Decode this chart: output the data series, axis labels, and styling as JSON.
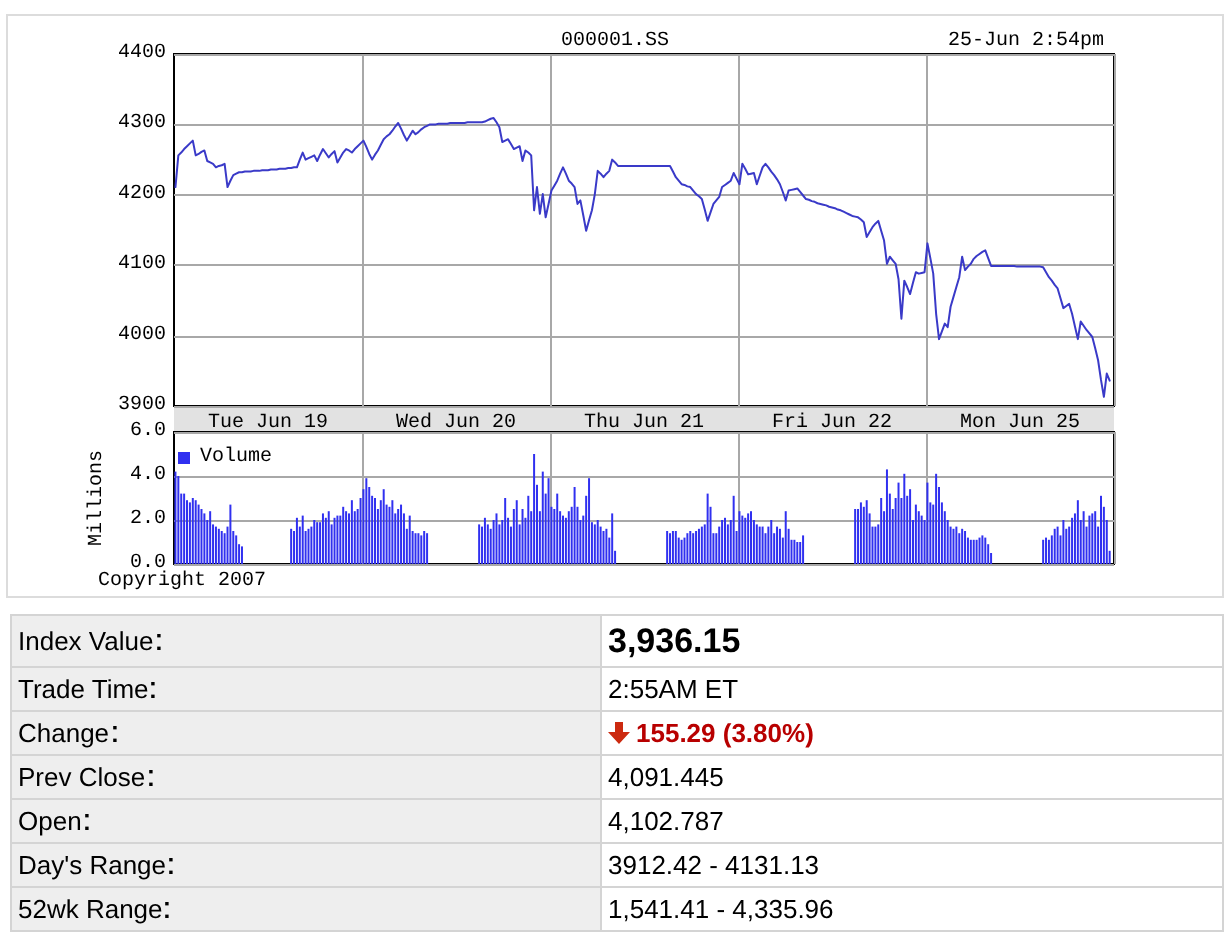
{
  "chart_data": [
    {
      "type": "line",
      "title": "000001.SS",
      "subtitle": "25-Jun 2:54pm",
      "categories": [
        null,
        null,
        null,
        null,
        null,
        null,
        null,
        null,
        null,
        null,
        null,
        null,
        null,
        null,
        null,
        null,
        null,
        null,
        null,
        null,
        null,
        null,
        null,
        null,
        null,
        null,
        null,
        null,
        null,
        null,
        null,
        null,
        "Tue Jun 19",
        null,
        null,
        null,
        null,
        null,
        null,
        null,
        null,
        null,
        null,
        null,
        null,
        null,
        null,
        null,
        null,
        null,
        null,
        null,
        null,
        null,
        null,
        null,
        null,
        null,
        null,
        null,
        null,
        null,
        null,
        null,
        null,
        null,
        null,
        null,
        null,
        null,
        null,
        null,
        null,
        null,
        null,
        null,
        null,
        null,
        null,
        null,
        null,
        null,
        null,
        null,
        null,
        null,
        null,
        null,
        null,
        null,
        null,
        null,
        null,
        null,
        null,
        null,
        null,
        "Wed Jun 20",
        null,
        null,
        null,
        null,
        null,
        null,
        null,
        null,
        null,
        null,
        null,
        null,
        null,
        null,
        null,
        null,
        null,
        null,
        null,
        null,
        null,
        null,
        null,
        null,
        null,
        null,
        null,
        null,
        null,
        null,
        null,
        null,
        null,
        null,
        null,
        null,
        null,
        null,
        null,
        null,
        null,
        null,
        null,
        null,
        null,
        null,
        null,
        null,
        null,
        null,
        null,
        null,
        null,
        null,
        null,
        null,
        null,
        null,
        null,
        null,
        null,
        null,
        null,
        null,
        "Thu Jun 21",
        null,
        null,
        null,
        null,
        null,
        null,
        null,
        null,
        null,
        null,
        null,
        null,
        null,
        null,
        null,
        null,
        null,
        null,
        null,
        null,
        null,
        null,
        null,
        null,
        null,
        null,
        null,
        null,
        null,
        null,
        null,
        null,
        null,
        null,
        null,
        null,
        null,
        null,
        null,
        null,
        null,
        null,
        null,
        null,
        null,
        null,
        null,
        null,
        null,
        null,
        null,
        null,
        null,
        null,
        null,
        null,
        null,
        null,
        null,
        null,
        null,
        null,
        null,
        null,
        "Fri Jun 22",
        null,
        null,
        null,
        null,
        null,
        null,
        null,
        null,
        null,
        null,
        null,
        null,
        null,
        null,
        null,
        null,
        null,
        null,
        null,
        null,
        null,
        null,
        null,
        null,
        null,
        null,
        null,
        null,
        null,
        null,
        null,
        null,
        null,
        null,
        null,
        null,
        null,
        null,
        null,
        null,
        null,
        null,
        null,
        null,
        null,
        null,
        null,
        null,
        null,
        null,
        null,
        null,
        null,
        null,
        null,
        null,
        null,
        null,
        null,
        null,
        null,
        null,
        null,
        null,
        "Mon Jun 25",
        null,
        null,
        null,
        null,
        null,
        null,
        null,
        null,
        null,
        null,
        null,
        null,
        null,
        null,
        null,
        null,
        null,
        null,
        null,
        null,
        null,
        null,
        null,
        null,
        null,
        null,
        null,
        null,
        null,
        null,
        null,
        null
      ],
      "values": [
        4211,
        4256,
        4260,
        4265,
        4269,
        4273,
        4277,
        4256,
        4258,
        4261,
        4263,
        4248,
        4246,
        4244,
        4239,
        4241,
        4242,
        4244,
        4211,
        4220,
        4228,
        4230,
        4232,
        4232,
        4233,
        4233,
        4233,
        4234,
        4234,
        4234,
        4235,
        4235,
        4235,
        4236,
        4236,
        4236,
        4237,
        4237,
        4237,
        4238,
        4238,
        4239,
        4239,
        4250,
        4260,
        4250,
        4252,
        4254,
        4256,
        4248,
        4257,
        4265,
        4259,
        4253,
        4258,
        4262,
        4246,
        4253,
        4260,
        4265,
        4263,
        4260,
        4265,
        4269,
        4273,
        4277,
        4268,
        4258,
        4250,
        4257,
        4263,
        4271,
        4279,
        4283,
        4286,
        4291,
        4297,
        4302,
        4294,
        4285,
        4277,
        4284,
        4291,
        4286,
        4289,
        4293,
        4296,
        4298,
        4300,
        4300,
        4300,
        4301,
        4301,
        4301,
        4301,
        4302,
        4302,
        4302,
        4302,
        4302,
        4302,
        4303,
        4303,
        4303,
        4303,
        4303,
        4303,
        4304,
        4306,
        4308,
        4309,
        4303,
        4296,
        4275,
        4277,
        4279,
        4272,
        4265,
        4267,
        4269,
        4248,
        4263,
        4260,
        4256,
        4178,
        4211,
        4173,
        4201,
        4168,
        4187,
        4206,
        4213,
        4220,
        4230,
        4239,
        4230,
        4220,
        4216,
        4211,
        4187,
        4192,
        4171,
        4149,
        4164,
        4178,
        4201,
        4234,
        4230,
        4225,
        4230,
        4234,
        4250,
        4246,
        4241,
        4241,
        4241,
        4241,
        4241,
        4241,
        4241,
        4241,
        4241,
        4241,
        4241,
        4241,
        4241,
        4241,
        4241,
        4241,
        4241,
        4241,
        4241,
        4233,
        4225,
        4220,
        4215,
        4214,
        4212,
        4211,
        4206,
        4201,
        4198,
        4194,
        4179,
        4163,
        4175,
        4187,
        4192,
        4197,
        4211,
        4214,
        4217,
        4220,
        4231,
        4223,
        4215,
        4244,
        4237,
        4229,
        4230,
        4231,
        4215,
        4227,
        4239,
        4244,
        4239,
        4233,
        4228,
        4222,
        4215,
        4204,
        4192,
        4206,
        4207,
        4208,
        4209,
        4204,
        4199,
        4194,
        4193,
        4191,
        4190,
        4188,
        4187,
        4186,
        4185,
        4183,
        4182,
        4181,
        4179,
        4178,
        4176,
        4174,
        4172,
        4170,
        4169,
        4168,
        4165,
        4161,
        4140,
        4147,
        4154,
        4159,
        4163,
        4149,
        4135,
        4102,
        4112,
        4107,
        4102,
        4080,
        4024,
        4078,
        4069,
        4059,
        4075,
        4090,
        4088,
        4089,
        4090,
        4131,
        4110,
        4088,
        4031,
        3995,
        4006,
        4017,
        4012,
        4041,
        4055,
        4069,
        4083,
        4112,
        4093,
        4098,
        4102,
        4109,
        4113,
        4116,
        4119,
        4121,
        4110,
        4099,
        4099,
        4099,
        4099,
        4099,
        4099,
        4099,
        4099,
        4099,
        4098,
        4098,
        4098,
        4098,
        4098,
        4098,
        4098,
        4098,
        4098,
        4097,
        4090,
        4083,
        4078,
        4072,
        4067,
        4053,
        4039,
        4042,
        4045,
        4031,
        4013,
        3995,
        4020,
        4014,
        4008,
        4003,
        3998,
        3982,
        3965,
        3937,
        3913,
        3946,
        3936,
        null
      ],
      "color": "#3a3ac8",
      "ylim": [
        3900,
        4400
      ],
      "yticks": [
        3900,
        4000,
        4100,
        4200,
        4300,
        4400
      ],
      "grid": true,
      "marker": "none",
      "line_style": "solid"
    },
    {
      "type": "bar",
      "categories": [
        null,
        null,
        null,
        null,
        null,
        null,
        null,
        null,
        null,
        null,
        null,
        null,
        null,
        null,
        null,
        null,
        null,
        null,
        null,
        null,
        null,
        null,
        null,
        null,
        null,
        null,
        null,
        null,
        null,
        null,
        null,
        null,
        null,
        null,
        null,
        null,
        null,
        null,
        null,
        null,
        null,
        null,
        null,
        null,
        null,
        null,
        null,
        null,
        null,
        null,
        null,
        null,
        null,
        null,
        null,
        null,
        null,
        null,
        null,
        null,
        null,
        null,
        null,
        null,
        null,
        null,
        null,
        null,
        null,
        null,
        null,
        null,
        null,
        null,
        null,
        null,
        null,
        null,
        null,
        null,
        null,
        null,
        null,
        null,
        null,
        null,
        null,
        null,
        null,
        null,
        null,
        null,
        null,
        null,
        null,
        null,
        null,
        null,
        null,
        null,
        null,
        null,
        null,
        null,
        null,
        null,
        null,
        null,
        null,
        null,
        null,
        null,
        null,
        null,
        null,
        null,
        null,
        null,
        null,
        null,
        null,
        null,
        null,
        null,
        null,
        null,
        null,
        null,
        null,
        null,
        null,
        null,
        null,
        null,
        null,
        null,
        null,
        null,
        null,
        null,
        null,
        null,
        null,
        null,
        null,
        null,
        null,
        null,
        null,
        null,
        null,
        null,
        null,
        null,
        null,
        null,
        null,
        null,
        null,
        null,
        null,
        null,
        null,
        null,
        null,
        null,
        null,
        null,
        null,
        null,
        null,
        null,
        null,
        null,
        null,
        null,
        null,
        null,
        null,
        null,
        null,
        null,
        null,
        null,
        null,
        null,
        null,
        null,
        null,
        null,
        null,
        null,
        null,
        null,
        null,
        null,
        null,
        null,
        null,
        null,
        null,
        null,
        null,
        null,
        null,
        null,
        null,
        null,
        null,
        null,
        null,
        null,
        null,
        null,
        null,
        null,
        null,
        null,
        null,
        null,
        null,
        null,
        null,
        null,
        null,
        null,
        null,
        null,
        null,
        null,
        null,
        null,
        null,
        null,
        null,
        null,
        null,
        null,
        null,
        null,
        null,
        null,
        null,
        null,
        null,
        null,
        null,
        null,
        null,
        null,
        null,
        null,
        null,
        null,
        null,
        null,
        null,
        null,
        null,
        null,
        null,
        null,
        null,
        null,
        null,
        null,
        null,
        null,
        null,
        null,
        null,
        null,
        null,
        null,
        null,
        null,
        null,
        null,
        null,
        null,
        null,
        null,
        null,
        null,
        null,
        null,
        null,
        null,
        null,
        null,
        null,
        null,
        null,
        null,
        null,
        null,
        null,
        null,
        null,
        null,
        null,
        null,
        null,
        null,
        null,
        null,
        null,
        null,
        null,
        null,
        null,
        null,
        null,
        null,
        null,
        null,
        null,
        null,
        null,
        null,
        null,
        null,
        null,
        null,
        null
      ],
      "series": [
        {
          "name": "Volume",
          "color": "#3030f0",
          "values": [
            4.2,
            4.0,
            3.2,
            3.2,
            2.9,
            2.8,
            3.0,
            2.9,
            2.7,
            2.5,
            2.3,
            2.0,
            2.4,
            1.8,
            1.7,
            1.6,
            1.5,
            1.4,
            1.7,
            2.7,
            1.5,
            1.3,
            0.9,
            0.8,
            null,
            null,
            null,
            null,
            null,
            null,
            null,
            null,
            null,
            null,
            null,
            null,
            null,
            null,
            null,
            null,
            1.6,
            1.5,
            2.1,
            1.7,
            2.2,
            1.5,
            1.6,
            1.7,
            2.0,
            1.9,
            1.9,
            2.3,
            2.1,
            2.4,
            1.8,
            2.1,
            2.2,
            2.2,
            2.6,
            2.4,
            2.3,
            2.9,
            2.4,
            2.5,
            3.0,
            3.4,
            3.9,
            3.5,
            3.1,
            3.0,
            2.5,
            2.9,
            3.4,
            2.7,
            2.6,
            2.9,
            2.3,
            2.5,
            2.7,
            2.3,
            1.6,
            2.2,
            1.5,
            1.4,
            1.4,
            1.3,
            1.5,
            1.4,
            null,
            null,
            null,
            null,
            null,
            null,
            null,
            null,
            null,
            null,
            null,
            null,
            null,
            null,
            null,
            null,
            null,
            1.8,
            1.7,
            2.1,
            1.8,
            1.6,
            2.0,
            2.3,
            1.8,
            2.0,
            3.0,
            2.1,
            1.7,
            2.5,
            2.9,
            1.8,
            2.5,
            2.1,
            3.1,
            2.4,
            5.0,
            3.6,
            2.4,
            4.2,
            3.2,
            3.9,
            2.6,
            2.5,
            3.2,
            2.4,
            2.2,
            2.1,
            2.4,
            2.6,
            3.5,
            2.6,
            2.0,
            2.2,
            3.1,
            3.9,
            1.9,
            1.8,
            2.0,
            1.7,
            1.5,
            1.6,
            1.2,
            2.3,
            0.6,
            null,
            null,
            null,
            null,
            null,
            null,
            null,
            null,
            null,
            null,
            null,
            null,
            null,
            null,
            null,
            null,
            null,
            1.5,
            1.4,
            1.5,
            1.5,
            1.2,
            1.1,
            1.2,
            1.4,
            1.5,
            1.4,
            1.5,
            1.6,
            1.7,
            1.8,
            3.2,
            2.6,
            1.4,
            1.4,
            1.7,
            2.0,
            2.1,
            1.8,
            2.0,
            3.1,
            1.5,
            2.4,
            2.2,
            2.1,
            2.3,
            2.4,
            2.0,
            1.8,
            1.7,
            1.7,
            1.4,
            1.7,
            2.0,
            1.4,
            1.7,
            1.6,
            1.2,
            2.4,
            1.6,
            1.1,
            1.1,
            1.0,
            1.0,
            1.3,
            null,
            null,
            null,
            null,
            null,
            null,
            null,
            null,
            null,
            null,
            null,
            null,
            null,
            null,
            null,
            null,
            null,
            2.5,
            2.5,
            2.8,
            2.6,
            2.9,
            2.3,
            1.7,
            1.7,
            1.8,
            3.0,
            2.4,
            4.3,
            3.2,
            2.5,
            3.0,
            3.7,
            3.0,
            4.1,
            3.1,
            3.4,
            2.0,
            2.7,
            2.4,
            2.2,
            2.0,
            3.7,
            2.8,
            2.7,
            4.1,
            3.5,
            2.8,
            2.4,
            2.0,
            1.7,
            1.6,
            1.7,
            1.4,
            1.6,
            1.5,
            1.2,
            1.1,
            1.1,
            1.1,
            1.2,
            1.3,
            1.2,
            0.9,
            0.5,
            null,
            null,
            null,
            null,
            null,
            null,
            null,
            null,
            null,
            null,
            null,
            null,
            null,
            null,
            null,
            null,
            null,
            1.1,
            1.2,
            1.1,
            1.3,
            1.6,
            1.7,
            1.3,
            2.0,
            1.6,
            1.7,
            2.1,
            2.3,
            2.9,
            2.0,
            2.4,
            1.7,
            2.2,
            2.3,
            2.4,
            1.7,
            3.1,
            2.6,
            2.0,
            0.6,
            null
          ]
        }
      ],
      "ylim": [
        0,
        6
      ],
      "yticks": [
        {
          "value": 0,
          "label": "0.0"
        },
        {
          "value": 2,
          "label": "2.0"
        },
        {
          "value": 4,
          "label": "4.0"
        },
        {
          "value": 6,
          "label": "6.0"
        }
      ],
      "ylabel": "Millions",
      "grid": true,
      "legend": "top left",
      "tick_labels": "y",
      "annotations": [
        "Copyright 2007"
      ]
    },
    {
      "type": "other",
      "categories": [
        "Index Value",
        "Trade Time",
        "Change",
        "Prev Close",
        "Open",
        "Day's Range",
        "52wk Range"
      ],
      "value_labels": [
        "3,936.15",
        "2:55AM ET",
        "155.29 (3.80%)",
        "4,091.445",
        "4,102.787",
        "3912.42 - 4131.13",
        "1,541.41 - 4,335.96"
      ]
    }
  ]
}
